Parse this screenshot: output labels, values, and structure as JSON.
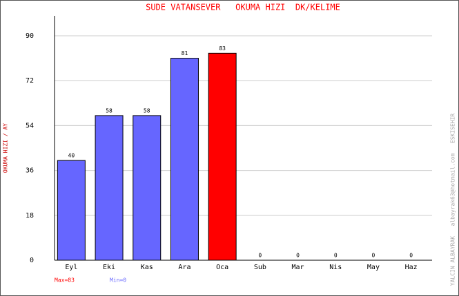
{
  "chart_data": {
    "type": "bar",
    "title": "SUDE VATANSEVER   OKUMA HIZI  DK/KELIME",
    "y_label": "OKUMA HIZI / AY",
    "side_note": "YALCIN ALBAYRAK   albayrak63@hotmail.com   ESKISEHIR",
    "annotations": [
      {
        "text": "Max=83",
        "color": "#ff0000"
      },
      {
        "text": "Min=0",
        "color": "#6666ff"
      }
    ],
    "categories": [
      "Eyl",
      "Eki",
      "Kas",
      "Ara",
      "Oca",
      "Sub",
      "Mar",
      "Nis",
      "May",
      "Haz"
    ],
    "values": [
      40,
      58,
      58,
      81,
      83,
      0,
      0,
      0,
      0,
      0
    ],
    "colors": [
      "#6666ff",
      "#6666ff",
      "#6666ff",
      "#6666ff",
      "#ff0000",
      "#6666ff",
      "#6666ff",
      "#6666ff",
      "#6666ff",
      "#6666ff"
    ],
    "ylim": [
      0,
      98
    ],
    "yticks": [
      0,
      18,
      36,
      54,
      72,
      90
    ],
    "grid": true
  }
}
